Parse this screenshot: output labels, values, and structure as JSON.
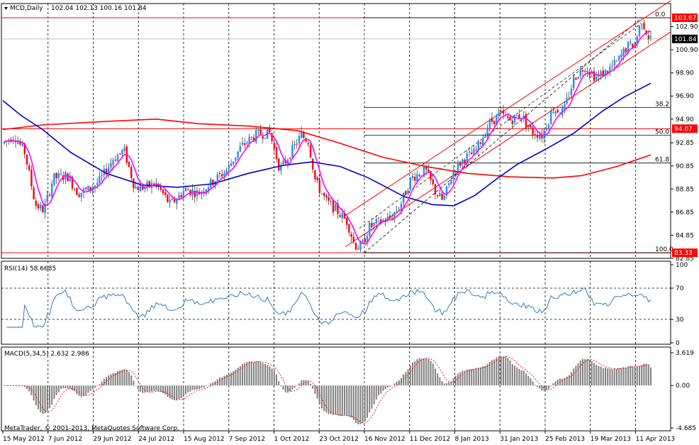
{
  "chart_data": [
    {
      "type": "candlestick",
      "title": "MCD,Daily",
      "ohlc_label": "102.04 102.13 100.16 101.84",
      "ylim": [
        82.85,
        104.9
      ],
      "y_ticks": [
        102.9,
        100.9,
        98.9,
        96.9,
        94.9,
        92.85,
        90.85,
        88.85,
        86.85,
        84.85,
        82.85
      ],
      "current_price": "101.84",
      "high_line": {
        "label": "103.67",
        "color": "#ff0000"
      },
      "low_line": {
        "label": "83.33",
        "color": "#ff0000"
      },
      "mid_line": {
        "label": "94.07",
        "color": "#ff0000"
      },
      "fibonacci": {
        "levels": [
          "0.0",
          "38.2",
          "50.0",
          "61.8",
          "100.0"
        ],
        "high": 103.67,
        "low": 83.33
      },
      "x_labels": [
        "15 May 2012",
        "7 Jun 2012",
        "29 Jun 2012",
        "24 Jul 2012",
        "15 Aug 2012",
        "7 Sep 2012",
        "1 Oct 2012",
        "23 Oct 2012",
        "16 Nov 2012",
        "11 Dec 2012",
        "8 Jan 2013",
        "31 Jan 2013",
        "25 Feb 2013",
        "19 Mar 2013",
        "11 Apr 2013"
      ],
      "bull_color": "#1e90ff",
      "bear_color": "#ff0000",
      "ma_colors": {
        "fast": "#ff00ff",
        "mid": "#0000cd",
        "slow": "#ff0000"
      }
    },
    {
      "type": "line",
      "label": "RSI(14) 58.6685",
      "ylim": [
        0,
        100
      ],
      "y_ticks": [
        "100",
        "70",
        "30",
        "0"
      ],
      "levels": [
        70,
        30
      ],
      "color": "#1e6eb4"
    },
    {
      "type": "bar",
      "label": "MACD(5,34,5) 2.632 2.986",
      "ylim": [
        -4.685,
        3.619
      ],
      "y_ticks": [
        "3.619",
        "0.00",
        "-4.685"
      ],
      "bar_color": "#808080",
      "signal_color": "#ff0000"
    }
  ],
  "copyright": "MetaTrader, © 2001-2013, MetaQuotes Software Corp."
}
